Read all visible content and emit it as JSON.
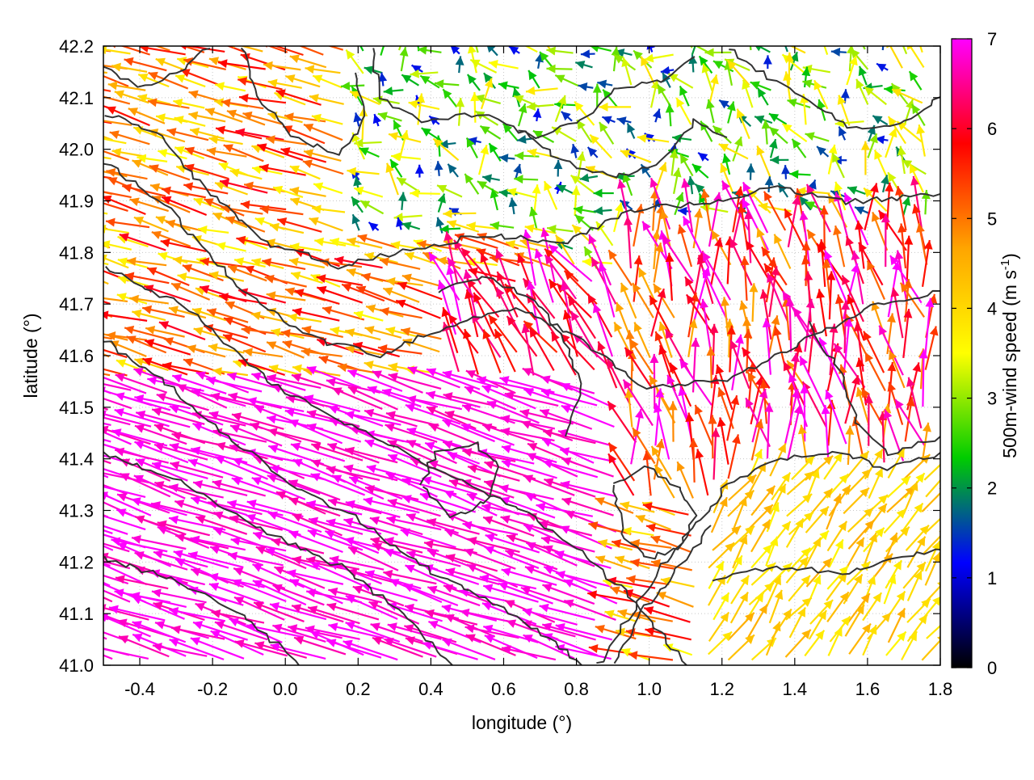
{
  "chart_data": {
    "type": "vector-field",
    "xlabel": "longitude (°)",
    "ylabel": "latitude (°)",
    "xlim": [
      -0.5,
      1.8
    ],
    "ylim": [
      41.0,
      42.2
    ],
    "x_ticks": [
      "-0.4",
      "-0.2",
      "0.0",
      "0.2",
      "0.4",
      "0.6",
      "0.8",
      "1.0",
      "1.2",
      "1.4",
      "1.6",
      "1.8"
    ],
    "y_ticks": [
      "41.0",
      "41.1",
      "41.2",
      "41.3",
      "41.4",
      "41.5",
      "41.6",
      "41.7",
      "41.8",
      "41.9",
      "42.0",
      "42.1",
      "42.2"
    ],
    "grid": "dotted light gray",
    "colorbar": {
      "label_main": "500m-wind speed (m s",
      "label_sup": "-1",
      "label_end": ")",
      "range": [
        0,
        7
      ],
      "ticks": [
        "0",
        "1",
        "2",
        "3",
        "4",
        "5",
        "6",
        "7"
      ],
      "colors": [
        "#000000",
        "#0000ff",
        "#00cc00",
        "#ffff00",
        "#ffa500",
        "#ff0000",
        "#ff00ff"
      ]
    },
    "field_regions": [
      {
        "region": "southwest",
        "speed": 7,
        "direction": "toward west-northwest"
      },
      {
        "region": "northwest",
        "speed": 5,
        "direction": "toward west-northwest"
      },
      {
        "region": "north-center",
        "speed": 2.5,
        "direction": "variable"
      },
      {
        "region": "center-east",
        "speed": 5.5,
        "direction": "toward north-northwest"
      },
      {
        "region": "southeast",
        "speed": 4,
        "direction": "toward northeast"
      }
    ],
    "contour_color": "#333333"
  }
}
